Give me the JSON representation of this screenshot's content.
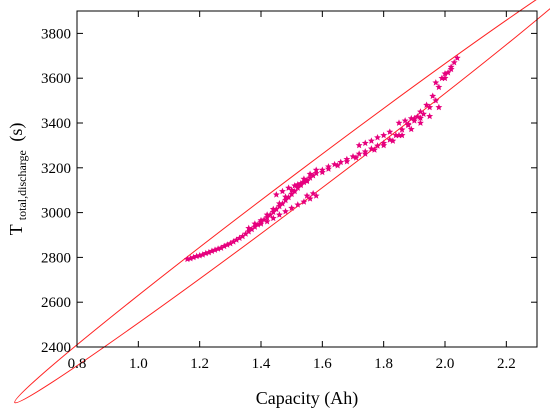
{
  "chart_data": {
    "type": "scatter",
    "title": "",
    "xlabel": "Capacity (Ah)",
    "ylabel": {
      "main": "T",
      "subscript": "total,discharge",
      "unit": "(s)"
    },
    "xlim": [
      0.8,
      2.3
    ],
    "ylim": [
      2400,
      3900
    ],
    "xticks": [
      "0.8",
      "1.0",
      "1.2",
      "1.4",
      "1.6",
      "1.8",
      "2.0",
      "2.2"
    ],
    "yticks": [
      "2400",
      "2600",
      "2800",
      "3000",
      "3200",
      "3400",
      "3600",
      "3800"
    ],
    "grid": false,
    "legend": "none",
    "marker": "star",
    "colors": {
      "points": "#e6007e",
      "ellipse": "#ff2222",
      "axes": "#000000"
    },
    "series": [
      {
        "points": [
          [
            1.16,
            2792
          ],
          [
            1.17,
            2795
          ],
          [
            1.18,
            2800
          ],
          [
            1.19,
            2805
          ],
          [
            1.2,
            2808
          ],
          [
            1.21,
            2812
          ],
          [
            1.22,
            2818
          ],
          [
            1.23,
            2822
          ],
          [
            1.24,
            2828
          ],
          [
            1.25,
            2833
          ],
          [
            1.26,
            2838
          ],
          [
            1.27,
            2842
          ],
          [
            1.28,
            2850
          ],
          [
            1.29,
            2856
          ],
          [
            1.3,
            2862
          ],
          [
            1.31,
            2870
          ],
          [
            1.32,
            2878
          ],
          [
            1.33,
            2886
          ],
          [
            1.34,
            2894
          ],
          [
            1.35,
            2905
          ],
          [
            1.36,
            2915
          ],
          [
            1.37,
            2925
          ],
          [
            1.38,
            2936
          ],
          [
            1.39,
            2946
          ],
          [
            1.4,
            2958
          ],
          [
            1.41,
            2968
          ],
          [
            1.42,
            2978
          ],
          [
            1.43,
            2990
          ],
          [
            1.44,
            3002
          ],
          [
            1.45,
            3015
          ],
          [
            1.46,
            3028
          ],
          [
            1.47,
            3040
          ],
          [
            1.48,
            3055
          ],
          [
            1.49,
            3068
          ],
          [
            1.5,
            3082
          ],
          [
            1.51,
            3095
          ],
          [
            1.52,
            3110
          ],
          [
            1.53,
            3122
          ],
          [
            1.54,
            3135
          ],
          [
            1.55,
            3145
          ],
          [
            1.56,
            3155
          ],
          [
            1.57,
            3165
          ],
          [
            1.58,
            3175
          ],
          [
            1.6,
            3190
          ],
          [
            1.62,
            3205
          ],
          [
            1.64,
            3215
          ],
          [
            1.66,
            3225
          ],
          [
            1.68,
            3238
          ],
          [
            1.7,
            3250
          ],
          [
            1.72,
            3262
          ],
          [
            1.74,
            3272
          ],
          [
            1.76,
            3285
          ],
          [
            1.78,
            3298
          ],
          [
            1.8,
            3310
          ],
          [
            1.82,
            3325
          ],
          [
            1.84,
            3345
          ],
          [
            1.86,
            3370
          ],
          [
            1.88,
            3395
          ],
          [
            1.9,
            3420
          ],
          [
            1.92,
            3450
          ],
          [
            1.94,
            3480
          ],
          [
            1.96,
            3520
          ],
          [
            1.98,
            3560
          ],
          [
            2.0,
            3600
          ],
          [
            2.01,
            3625
          ],
          [
            2.02,
            3650
          ],
          [
            2.03,
            3670
          ],
          [
            2.04,
            3690
          ],
          [
            1.36,
            2930
          ],
          [
            1.38,
            2950
          ],
          [
            1.4,
            2965
          ],
          [
            1.42,
            2990
          ],
          [
            1.44,
            3015
          ],
          [
            1.46,
            3040
          ],
          [
            1.48,
            3070
          ],
          [
            1.5,
            3100
          ],
          [
            1.52,
            3125
          ],
          [
            1.54,
            3150
          ],
          [
            1.56,
            3172
          ],
          [
            1.58,
            3190
          ],
          [
            1.4,
            2950
          ],
          [
            1.42,
            2960
          ],
          [
            1.44,
            2975
          ],
          [
            1.46,
            2990
          ],
          [
            1.48,
            3005
          ],
          [
            1.5,
            3020
          ],
          [
            1.52,
            3035
          ],
          [
            1.54,
            3048
          ],
          [
            1.56,
            3062
          ],
          [
            1.58,
            3075
          ],
          [
            1.45,
            3080
          ],
          [
            1.47,
            3095
          ],
          [
            1.49,
            3110
          ],
          [
            1.51,
            3120
          ],
          [
            1.53,
            3130
          ],
          [
            1.55,
            3140
          ],
          [
            1.55,
            3075
          ],
          [
            1.57,
            3085
          ],
          [
            1.6,
            3180
          ],
          [
            1.62,
            3195
          ],
          [
            1.65,
            3210
          ],
          [
            1.68,
            3228
          ],
          [
            1.71,
            3245
          ],
          [
            1.74,
            3262
          ],
          [
            1.77,
            3280
          ],
          [
            1.8,
            3300
          ],
          [
            1.83,
            3320
          ],
          [
            1.86,
            3345
          ],
          [
            1.89,
            3372
          ],
          [
            1.92,
            3400
          ],
          [
            1.95,
            3430
          ],
          [
            1.98,
            3470
          ],
          [
            1.72,
            3300
          ],
          [
            1.74,
            3310
          ],
          [
            1.76,
            3320
          ],
          [
            1.78,
            3335
          ],
          [
            1.8,
            3345
          ],
          [
            1.82,
            3360
          ],
          [
            1.85,
            3400
          ],
          [
            1.87,
            3410
          ],
          [
            1.89,
            3420
          ],
          [
            1.91,
            3428
          ],
          [
            1.93,
            3440
          ],
          [
            1.97,
            3580
          ],
          [
            1.99,
            3600
          ],
          [
            2.0,
            3620
          ],
          [
            2.02,
            3640
          ],
          [
            1.85,
            3345
          ],
          [
            1.88,
            3390
          ],
          [
            1.9,
            3410
          ],
          [
            1.92,
            3422
          ],
          [
            1.95,
            3470
          ],
          [
            1.97,
            3500
          ]
        ]
      }
    ],
    "ellipse": {
      "cx": 1.545,
      "cy": 3130,
      "angle_deg": -37.0,
      "rx_px": 364,
      "ry_px": 13.5
    }
  }
}
